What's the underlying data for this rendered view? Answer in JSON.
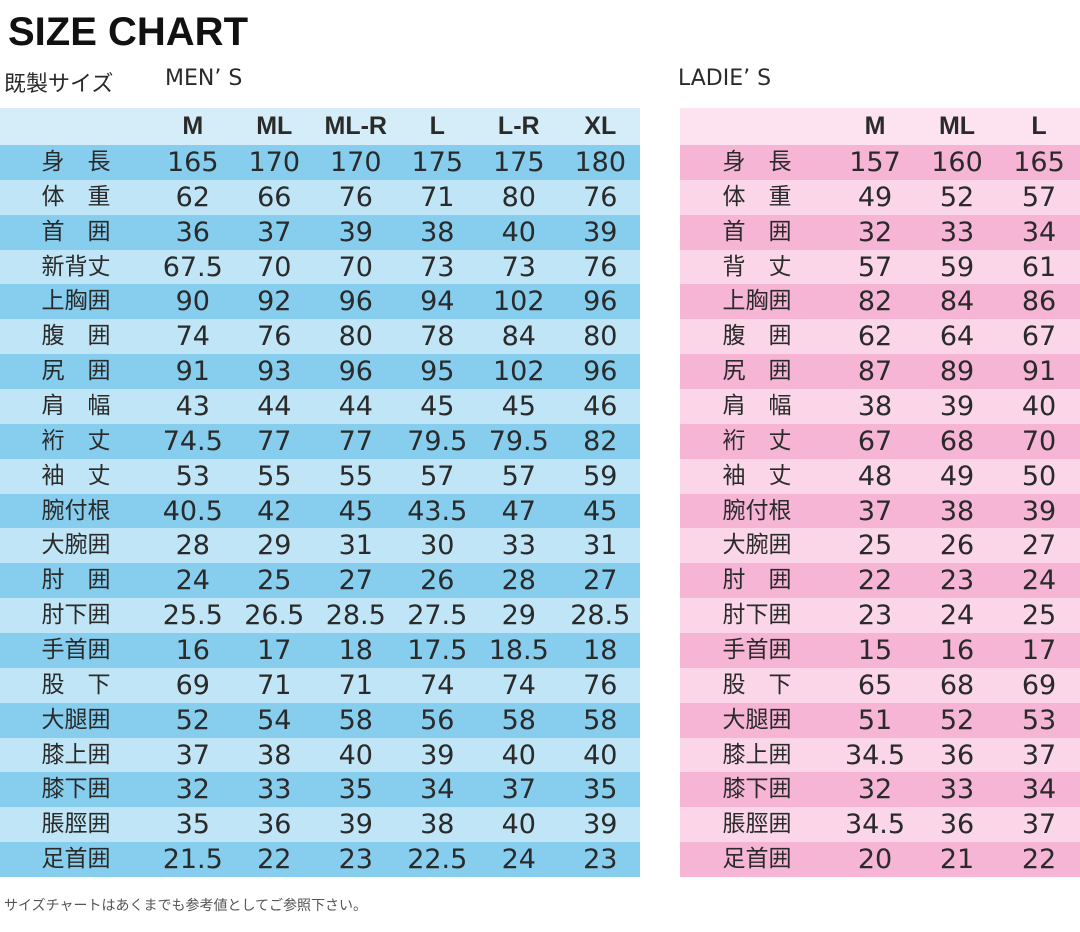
{
  "header": {
    "title": "SIZE CHART",
    "subtitle": "既製サイズ"
  },
  "men": {
    "label": "MEN’ S",
    "columns": [
      "M",
      "ML",
      "ML-R",
      "L",
      "L-R",
      "XL"
    ],
    "rows": [
      {
        "label": "身　長",
        "values": [
          165,
          170,
          170,
          175,
          175,
          180
        ]
      },
      {
        "label": "体　重",
        "values": [
          62,
          66,
          76,
          71,
          80,
          76
        ]
      },
      {
        "label": "首　囲",
        "values": [
          36,
          37,
          39,
          38,
          40,
          39
        ]
      },
      {
        "label": "新背丈",
        "values": [
          67.5,
          70,
          70,
          73,
          73,
          76
        ]
      },
      {
        "label": "上胸囲",
        "values": [
          90,
          92,
          96,
          94,
          102,
          96
        ]
      },
      {
        "label": "腹　囲",
        "values": [
          74,
          76,
          80,
          78,
          84,
          80
        ]
      },
      {
        "label": "尻　囲",
        "values": [
          91,
          93,
          96,
          95,
          102,
          96
        ]
      },
      {
        "label": "肩　幅",
        "values": [
          43,
          44,
          44,
          45,
          45,
          46
        ]
      },
      {
        "label": "裄　丈",
        "values": [
          74.5,
          77,
          77,
          79.5,
          79.5,
          82
        ]
      },
      {
        "label": "袖　丈",
        "values": [
          53,
          55,
          55,
          57,
          57,
          59
        ]
      },
      {
        "label": "腕付根",
        "values": [
          40.5,
          42,
          45,
          43.5,
          47,
          45
        ]
      },
      {
        "label": "大腕囲",
        "values": [
          28,
          29,
          31,
          30,
          33,
          31
        ]
      },
      {
        "label": "肘　囲",
        "values": [
          24,
          25,
          27,
          26,
          28,
          27
        ]
      },
      {
        "label": "肘下囲",
        "values": [
          25.5,
          26.5,
          28.5,
          27.5,
          29,
          28.5
        ]
      },
      {
        "label": "手首囲",
        "values": [
          16,
          17,
          18,
          17.5,
          18.5,
          18
        ]
      },
      {
        "label": "股　下",
        "values": [
          69,
          71,
          71,
          74,
          74,
          76
        ]
      },
      {
        "label": "大腿囲",
        "values": [
          52,
          54,
          58,
          56,
          58,
          58
        ]
      },
      {
        "label": "膝上囲",
        "values": [
          37,
          38,
          40,
          39,
          40,
          40
        ]
      },
      {
        "label": "膝下囲",
        "values": [
          32,
          33,
          35,
          34,
          37,
          35
        ]
      },
      {
        "label": "脹脛囲",
        "values": [
          35,
          36,
          39,
          38,
          40,
          39
        ]
      },
      {
        "label": "足首囲",
        "values": [
          21.5,
          22,
          23,
          22.5,
          24,
          23
        ]
      }
    ]
  },
  "ladies": {
    "label": "LADIE’ S",
    "columns": [
      "M",
      "ML",
      "L"
    ],
    "rows": [
      {
        "label": "身　長",
        "values": [
          157,
          160,
          165
        ]
      },
      {
        "label": "体　重",
        "values": [
          49,
          52,
          57
        ]
      },
      {
        "label": "首　囲",
        "values": [
          32,
          33,
          34
        ]
      },
      {
        "label": "背　丈",
        "values": [
          57,
          59,
          61
        ]
      },
      {
        "label": "上胸囲",
        "values": [
          82,
          84,
          86
        ]
      },
      {
        "label": "腹　囲",
        "values": [
          62,
          64,
          67
        ]
      },
      {
        "label": "尻　囲",
        "values": [
          87,
          89,
          91
        ]
      },
      {
        "label": "肩　幅",
        "values": [
          38,
          39,
          40
        ]
      },
      {
        "label": "裄　丈",
        "values": [
          67,
          68,
          70
        ]
      },
      {
        "label": "袖　丈",
        "values": [
          48,
          49,
          50
        ]
      },
      {
        "label": "腕付根",
        "values": [
          37,
          38,
          39
        ]
      },
      {
        "label": "大腕囲",
        "values": [
          25,
          26,
          27
        ]
      },
      {
        "label": "肘　囲",
        "values": [
          22,
          23,
          24
        ]
      },
      {
        "label": "肘下囲",
        "values": [
          23,
          24,
          25
        ]
      },
      {
        "label": "手首囲",
        "values": [
          15,
          16,
          17
        ]
      },
      {
        "label": "股　下",
        "values": [
          65,
          68,
          69
        ]
      },
      {
        "label": "大腿囲",
        "values": [
          51,
          52,
          53
        ]
      },
      {
        "label": "膝上囲",
        "values": [
          34.5,
          36,
          37
        ]
      },
      {
        "label": "膝下囲",
        "values": [
          32,
          33,
          34
        ]
      },
      {
        "label": "脹脛囲",
        "values": [
          34.5,
          36,
          37
        ]
      },
      {
        "label": "足首囲",
        "values": [
          20,
          21,
          22
        ]
      }
    ]
  },
  "footer": "サイズチャートはあくまでも参考値としてご参照下さい。"
}
